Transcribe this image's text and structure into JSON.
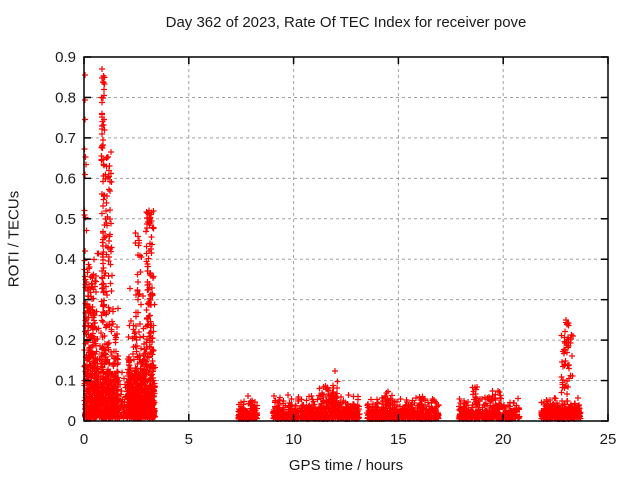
{
  "chart_data": {
    "type": "scatter",
    "title": "Day 362 of 2023, Rate Of TEC Index for receiver pove",
    "xlabel": "GPS time / hours",
    "ylabel": "ROTI / TECUs",
    "xlim": [
      0,
      25
    ],
    "ylim": [
      0,
      0.9
    ],
    "xticks": {
      "values": [
        0,
        5,
        10,
        15,
        20,
        25
      ],
      "labels": [
        "0",
        "5",
        "10",
        "15",
        "20",
        "25"
      ]
    },
    "yticks": {
      "values": [
        0,
        0.1,
        0.2,
        0.3,
        0.4,
        0.5,
        0.6,
        0.7,
        0.8,
        0.9
      ],
      "labels": [
        "0",
        "0.1",
        "0.2",
        "0.3",
        "0.4",
        "0.5",
        "0.6",
        "0.7",
        "0.8",
        "0.9"
      ]
    },
    "grid": true,
    "legend": "none",
    "marker": "plus",
    "marker_color": "#ff0000",
    "grid_color": "#a0a0a0",
    "border_color": "#000000",
    "text_color": "#1a1a1a",
    "random_seed": 42,
    "clusters": [
      {
        "name": "morning-band-1-base",
        "x": [
          0.02,
          1.64
        ],
        "n": 780,
        "dist": "exp",
        "y": [
          0.006,
          0.42
        ],
        "tau": 0.07
      },
      {
        "name": "morning-band-1-mid",
        "x": [
          0.05,
          0.6
        ],
        "n": 120,
        "dist": "uniform",
        "y": [
          0.08,
          0.36
        ]
      },
      {
        "name": "morning-col-0h",
        "x": [
          0.0,
          0.12
        ],
        "n": 10,
        "dist": "uniform",
        "y": [
          0.28,
          0.8
        ]
      },
      {
        "name": "morning-col-0.9h",
        "x": [
          0.83,
          0.98
        ],
        "n": 65,
        "dist": "uniform",
        "y": [
          0.28,
          0.86
        ]
      },
      {
        "name": "morning-col-1.2h",
        "x": [
          1.02,
          1.33
        ],
        "n": 55,
        "dist": "uniform",
        "y": [
          0.22,
          0.66
        ]
      },
      {
        "name": "morning-gap-fill",
        "x": [
          1.64,
          2.08
        ],
        "n": 45,
        "dist": "exp",
        "y": [
          0.005,
          0.13
        ],
        "tau": 0.035
      },
      {
        "name": "morning-band-2-base",
        "x": [
          2.08,
          3.38
        ],
        "n": 700,
        "dist": "exp",
        "y": [
          0.006,
          0.33
        ],
        "tau": 0.06
      },
      {
        "name": "morning-col-2.6h",
        "x": [
          2.42,
          2.75
        ],
        "n": 20,
        "dist": "uniform",
        "y": [
          0.18,
          0.46
        ]
      },
      {
        "name": "morning-col-3.1h",
        "x": [
          2.95,
          3.32
        ],
        "n": 85,
        "dist": "uniform",
        "y": [
          0.14,
          0.52
        ]
      },
      {
        "name": "blob-7.8h",
        "x": [
          7.35,
          8.27
        ],
        "n": 190,
        "dist": "exp",
        "y": [
          0.005,
          0.05
        ],
        "tau": 0.013
      },
      {
        "name": "blob-7.9h-tips",
        "x": [
          7.8,
          8.05
        ],
        "n": 5,
        "dist": "uniform",
        "y": [
          0.04,
          0.062
        ]
      },
      {
        "name": "midday-band",
        "x": [
          9.02,
          13.15
        ],
        "n": 640,
        "dist": "exp",
        "y": [
          0.005,
          0.065
        ],
        "tau": 0.015
      },
      {
        "name": "bump-11.5h",
        "x": [
          11.2,
          11.75
        ],
        "n": 25,
        "dist": "uniform",
        "y": [
          0.03,
          0.088
        ]
      },
      {
        "name": "spike-12h",
        "x": [
          11.8,
          12.15
        ],
        "n": 55,
        "dist": "exp",
        "y": [
          0.02,
          0.125
        ],
        "tau": 0.03
      },
      {
        "name": "afternoon-band",
        "x": [
          13.5,
          16.92
        ],
        "n": 560,
        "dist": "exp",
        "y": [
          0.005,
          0.058
        ],
        "tau": 0.014
      },
      {
        "name": "bump-14.5h",
        "x": [
          14.25,
          14.7
        ],
        "n": 18,
        "dist": "uniform",
        "y": [
          0.03,
          0.074
        ]
      },
      {
        "name": "bump-16h",
        "x": [
          15.9,
          16.3
        ],
        "n": 14,
        "dist": "uniform",
        "y": [
          0.03,
          0.062
        ]
      },
      {
        "name": "evening-band",
        "x": [
          17.88,
          20.78
        ],
        "n": 400,
        "dist": "exp",
        "y": [
          0.005,
          0.062
        ],
        "tau": 0.014
      },
      {
        "name": "bump-18.7h",
        "x": [
          18.5,
          18.85
        ],
        "n": 14,
        "dist": "uniform",
        "y": [
          0.04,
          0.086
        ]
      },
      {
        "name": "bump-19.6h",
        "x": [
          19.35,
          19.95
        ],
        "n": 18,
        "dist": "uniform",
        "y": [
          0.035,
          0.075
        ]
      },
      {
        "name": "night-band",
        "x": [
          21.82,
          23.68
        ],
        "n": 360,
        "dist": "exp",
        "y": [
          0.005,
          0.06
        ],
        "tau": 0.014
      },
      {
        "name": "spike-23h",
        "x": [
          22.75,
          23.35
        ],
        "n": 42,
        "dist": "uniform",
        "y": [
          0.065,
          0.215
        ]
      },
      {
        "name": "spike-23h-top",
        "x": [
          22.88,
          23.12
        ],
        "n": 9,
        "dist": "uniform",
        "y": [
          0.17,
          0.245
        ]
      }
    ],
    "highlight_points": [
      [
        0.05,
        0.855
      ],
      [
        0.86,
        0.87
      ],
      [
        0.05,
        0.745
      ],
      [
        0.84,
        0.8
      ],
      [
        0.87,
        0.76
      ],
      [
        0.89,
        0.74
      ],
      [
        0.86,
        0.71
      ],
      [
        0.9,
        0.695
      ],
      [
        0.05,
        0.61
      ],
      [
        0.03,
        0.52
      ],
      [
        1.3,
        0.665
      ],
      [
        1.22,
        0.63
      ],
      [
        3.1,
        0.52
      ],
      [
        3.16,
        0.5
      ],
      [
        2.62,
        0.44
      ],
      [
        2.45,
        0.465
      ],
      [
        11.97,
        0.124
      ],
      [
        23.0,
        0.25
      ],
      [
        23.05,
        0.238
      ]
    ]
  }
}
